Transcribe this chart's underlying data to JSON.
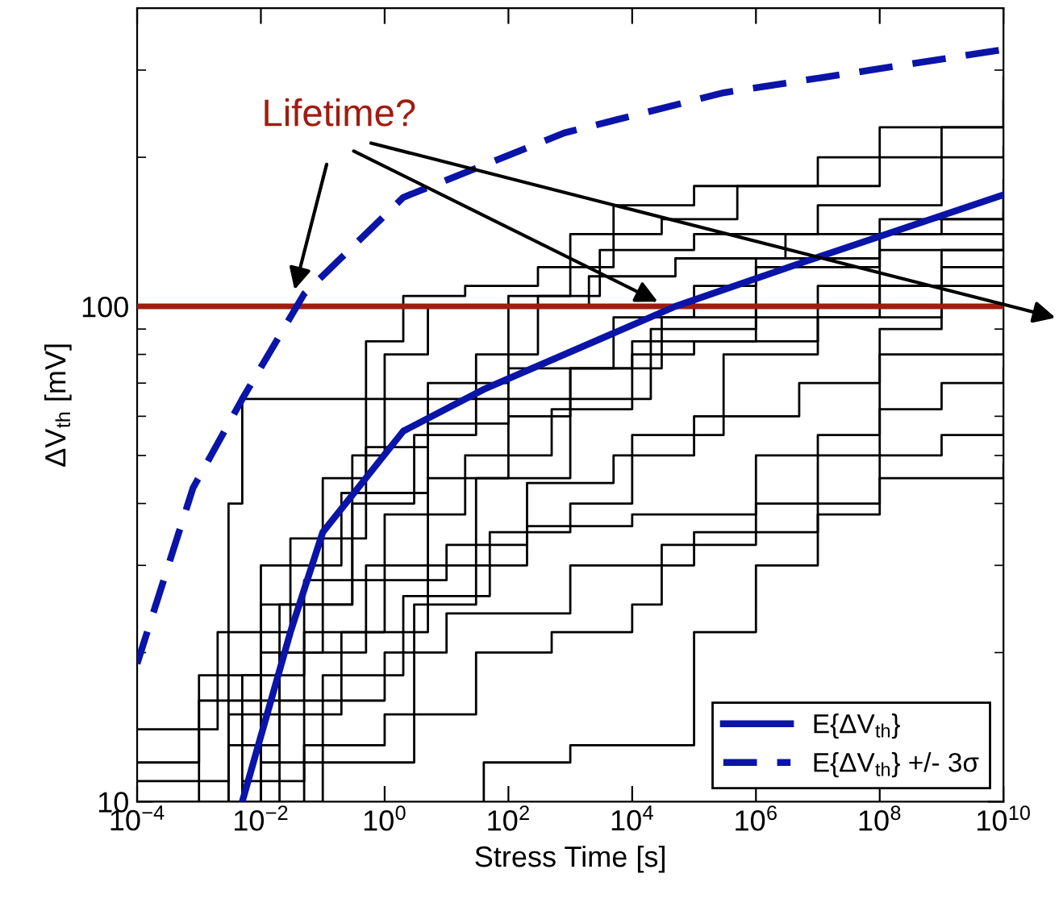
{
  "chart_data": {
    "type": "step",
    "xlabel": "Stress Time [s]",
    "ylabel": "ΔV$_{th}$ [mV]",
    "log": "xy",
    "xlim": [
      0.0001,
      10000000000
    ],
    "ylim": [
      10,
      400
    ],
    "xticks": [
      {
        "value": 0.0001,
        "label": "10$^{−4}$"
      },
      {
        "value": 0.01,
        "label": "10$^{−2}$"
      },
      {
        "value": 1,
        "label": "10$^{0}$"
      },
      {
        "value": 100,
        "label": "10$^{2}$"
      },
      {
        "value": 10000,
        "label": "10$^{4}$"
      },
      {
        "value": 1000000,
        "label": "10$^{6}$"
      },
      {
        "value": 100000000,
        "label": "10$^{8}$"
      },
      {
        "value": 10000000000,
        "label": "10$^{10}$"
      }
    ],
    "yticks": [
      10,
      100
    ],
    "grid": false,
    "legend": "bottom right",
    "ref_lines": [
      {
        "axis": "y",
        "value": 100,
        "color": "#a01c10"
      }
    ],
    "annotations": [
      {
        "text": "Lifetime?",
        "x": 0.035,
        "y": 108
      }
    ],
    "series": [
      {
        "color": "#000000",
        "x": [
          0.0001,
          0.003,
          0.02,
          0.5,
          5,
          100,
          1000,
          30000,
          1000000,
          100000000,
          10000000000
        ],
        "values": [
          10,
          13,
          20,
          30,
          45,
          60,
          75,
          95,
          120,
          150,
          180
        ]
      },
      {
        "color": "#000000",
        "x": [
          0.0001,
          0.001,
          0.01,
          0.3,
          3,
          30,
          300,
          3000,
          100000,
          10000000,
          1000000000,
          10000000000
        ],
        "values": [
          12,
          16,
          25,
          40,
          55,
          80,
          105,
          130,
          140,
          160,
          200,
          210
        ]
      },
      {
        "color": "#000000",
        "x": [
          0.0001,
          0.005,
          0.05,
          1,
          20,
          500,
          10000,
          100000,
          10000000,
          1000000000,
          10000000000
        ],
        "values": [
          10,
          18,
          28,
          38,
          50,
          62,
          80,
          85,
          110,
          130,
          140
        ]
      },
      {
        "color": "#000000",
        "x": [
          0.0001,
          0.01,
          0.1,
          2,
          50,
          1000,
          10000,
          300000,
          10000000,
          1000000000,
          10000000000
        ],
        "values": [
          10,
          12,
          18,
          26,
          35,
          40,
          55,
          80,
          95,
          120,
          125
        ]
      },
      {
        "color": "#000000",
        "x": [
          0.0001,
          0.002,
          0.03,
          0.5,
          5,
          100,
          2000,
          50000,
          3000000,
          1000000000,
          10000000000
        ],
        "values": [
          14,
          22,
          34,
          52,
          70,
          100,
          115,
          125,
          140,
          150,
          155
        ]
      },
      {
        "color": "#000000",
        "x": [
          0.0001,
          0.003,
          0.2,
          5,
          200,
          5000,
          100000,
          5000000,
          100000000,
          1000000000,
          10000000000
        ],
        "values": [
          11,
          15,
          22,
          30,
          44,
          50,
          60,
          70,
          90,
          100,
          110
        ]
      },
      {
        "color": "#000000",
        "x": [
          40,
          40,
          1000,
          100000,
          1000000,
          10000000,
          100000000,
          1000000000,
          10000000000
        ],
        "values": [
          10,
          12,
          13,
          22,
          30,
          40,
          50,
          55,
          60
        ]
      },
      {
        "color": "#000000",
        "x": [
          0.0001,
          0.05,
          1,
          30,
          500,
          10000,
          30000,
          1000000,
          10000000,
          100000000,
          1000000000,
          10000000000
        ],
        "values": [
          10,
          13,
          15,
          20,
          22,
          25,
          33,
          40,
          55,
          62,
          70,
          75
        ]
      },
      {
        "color": "#000000",
        "x": [
          0.0001,
          0.003,
          0.005,
          10000,
          20000,
          1000000,
          100000000,
          10000000000
        ],
        "values": [
          10,
          40,
          65,
          65,
          90,
          100,
          130,
          140
        ]
      },
      {
        "color": "#000000",
        "x": [
          0.0001,
          0.01,
          0.1,
          0.5,
          2,
          20,
          300,
          5000,
          100000,
          10000000,
          1000000000,
          10000000000
        ],
        "values": [
          10,
          20,
          45,
          85,
          105,
          110,
          120,
          160,
          175,
          200,
          230,
          260
        ]
      },
      {
        "color": "#000000",
        "x": [
          0.0001,
          0.02,
          0.3,
          1,
          5,
          100,
          1000,
          30000,
          500000,
          100000000,
          10000000000
        ],
        "values": [
          10,
          25,
          50,
          80,
          100,
          105,
          140,
          150,
          175,
          230,
          290
        ]
      },
      {
        "color": "#000000",
        "x": [
          0.0001,
          0.005,
          0.05,
          1,
          10,
          200,
          10000,
          1000000,
          100000000,
          10000000000
        ],
        "values": [
          10,
          11,
          22,
          28,
          33,
          36,
          38,
          50,
          80,
          90
        ]
      },
      {
        "color": "#000000",
        "x": [
          0.0001,
          0.1,
          3,
          30,
          1000,
          10000,
          1000000,
          100000000,
          10000000000
        ],
        "values": [
          10,
          12,
          25,
          45,
          75,
          85,
          95,
          110,
          120
        ]
      },
      {
        "color": "#000000",
        "x": [
          0.0001,
          0.001,
          0.01,
          0.2,
          5,
          100,
          5000,
          100000,
          1000000,
          100000000,
          10000000000
        ],
        "values": [
          10,
          18,
          30,
          42,
          58,
          75,
          95,
          110,
          125,
          140,
          165
        ]
      },
      {
        "color": "#000000",
        "x": [
          0.0001,
          0.01,
          1,
          10,
          1000,
          100000,
          10000000,
          100000000,
          10000000000
        ],
        "values": [
          10,
          16,
          20,
          24,
          30,
          35,
          38,
          45,
          48
        ]
      },
      {
        "name": "E{ΔV$_{th}$}",
        "type": "line",
        "color": "#0a14a8",
        "line_style": "solid",
        "x": [
          0.005,
          0.03,
          0.1,
          2,
          40,
          50000,
          6000000,
          10000000000
        ],
        "values": [
          10,
          22,
          35,
          56,
          68,
          100,
          123,
          168
        ]
      },
      {
        "name": "E{ΔV$_{th}$} +/- 3σ",
        "type": "line",
        "color": "#0a14a8",
        "line_style": "dashed",
        "x": [
          0.0001,
          0.0008,
          0.005,
          0.05,
          2,
          800,
          300000,
          10000000000
        ],
        "values": [
          19,
          43,
          65,
          106,
          166,
          224,
          270,
          330
        ]
      }
    ]
  }
}
